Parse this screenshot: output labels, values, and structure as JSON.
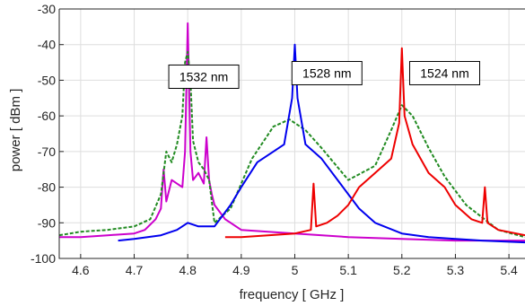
{
  "chart_data": {
    "type": "line",
    "title": "",
    "xlabel": "frequency  [ GHz ]",
    "ylabel": "power [ dBm ]",
    "xlim": [
      4.56,
      5.43
    ],
    "ylim": [
      -100,
      -30
    ],
    "grid": true,
    "xticks": [
      4.6,
      4.7,
      4.8,
      4.9,
      5.0,
      5.1,
      5.2,
      5.3,
      5.4
    ],
    "xtick_labels": [
      "4.6",
      "4.7",
      "4.8",
      "4.9",
      "5",
      "5.1",
      "5.2",
      "5.3",
      "5.4"
    ],
    "yticks": [
      -100,
      -90,
      -80,
      -70,
      -60,
      -50,
      -40,
      -30
    ],
    "ytick_labels": [
      "-100",
      "-90",
      "-80",
      "-70",
      "-60",
      "-50",
      "-40",
      "-30"
    ],
    "annotations": [
      {
        "text": "1532 nm",
        "x": 4.83,
        "y": -49
      },
      {
        "text": "1528 nm",
        "x": 5.06,
        "y": -48
      },
      {
        "text": "1524 nm",
        "x": 5.28,
        "y": -48
      }
    ],
    "series": [
      {
        "color": "#cc00cc",
        "style": "solid",
        "x": [
          4.56,
          4.6,
          4.65,
          4.7,
          4.72,
          4.74,
          4.75,
          4.755,
          4.76,
          4.77,
          4.78,
          4.79,
          4.795,
          4.8,
          4.805,
          4.81,
          4.82,
          4.83,
          4.835,
          4.84,
          4.845,
          4.85,
          4.87,
          4.9,
          5.0,
          5.1,
          5.2,
          5.3,
          5.43
        ],
        "y": [
          -94,
          -94,
          -93.5,
          -93,
          -92,
          -89,
          -86,
          -75,
          -84,
          -78,
          -79,
          -80,
          -70,
          -34,
          -70,
          -78,
          -76,
          -79,
          -66,
          -78,
          -82,
          -85,
          -89,
          -92,
          -93,
          -94,
          -94.5,
          -95,
          -95
        ]
      },
      {
        "color": "#228b22",
        "style": "dashed",
        "x": [
          4.56,
          4.6,
          4.65,
          4.7,
          4.73,
          4.75,
          4.76,
          4.77,
          4.78,
          4.79,
          4.795,
          4.8,
          4.805,
          4.81,
          4.82,
          4.83,
          4.84,
          4.85,
          4.88,
          4.92,
          4.96,
          4.99,
          5.02,
          5.05,
          5.1,
          5.15,
          5.18,
          5.2,
          5.22,
          5.25,
          5.28,
          5.32,
          5.38,
          5.43
        ],
        "y": [
          -93.5,
          -92.5,
          -92,
          -91,
          -89,
          -82,
          -70,
          -73,
          -68,
          -60,
          -45,
          -42,
          -50,
          -67,
          -73,
          -75,
          -78,
          -90,
          -86,
          -72,
          -63,
          -61,
          -64,
          -69,
          -78,
          -74,
          -64,
          -57,
          -60,
          -69,
          -77,
          -85,
          -92,
          -94
        ]
      },
      {
        "color": "#0000ee",
        "style": "solid",
        "x": [
          4.67,
          4.7,
          4.75,
          4.78,
          4.8,
          4.82,
          4.85,
          4.88,
          4.9,
          4.93,
          4.96,
          4.98,
          4.995,
          5.0,
          5.005,
          5.02,
          5.05,
          5.08,
          5.1,
          5.12,
          5.15,
          5.2,
          5.25,
          5.3,
          5.35,
          5.43
        ],
        "y": [
          -95,
          -94.5,
          -93.5,
          -92,
          -90,
          -91,
          -91,
          -85,
          -80,
          -73,
          -70,
          -68,
          -55,
          -40,
          -55,
          -68,
          -72,
          -78,
          -82,
          -86,
          -90,
          -93,
          -94,
          -94.5,
          -95,
          -95.5
        ]
      },
      {
        "color": "#ee0000",
        "style": "solid",
        "x": [
          4.87,
          4.9,
          4.95,
          5.0,
          5.03,
          5.035,
          5.04,
          5.06,
          5.08,
          5.1,
          5.12,
          5.15,
          5.18,
          5.195,
          5.2,
          5.205,
          5.22,
          5.25,
          5.28,
          5.3,
          5.33,
          5.35,
          5.355,
          5.36,
          5.38,
          5.43
        ],
        "y": [
          -94,
          -94,
          -93.5,
          -93,
          -92,
          -79,
          -91,
          -90,
          -88,
          -85,
          -80,
          -76,
          -72,
          -62,
          -41,
          -60,
          -68,
          -76,
          -80,
          -85,
          -89,
          -90,
          -80,
          -90,
          -92,
          -93.5
        ]
      }
    ]
  }
}
